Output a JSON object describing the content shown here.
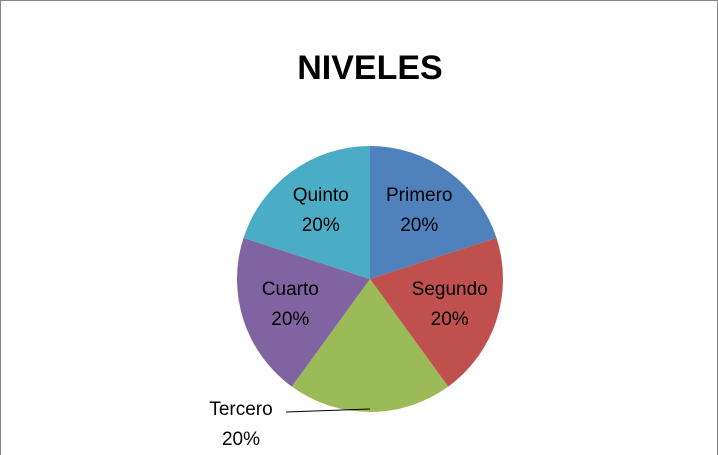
{
  "chart_data": {
    "type": "pie",
    "title": "NIVELES",
    "categories": [
      "Primero",
      "Segundo",
      "Tercero",
      "Cuarto",
      "Quinto"
    ],
    "values": [
      20,
      20,
      20,
      20,
      20
    ],
    "value_labels": [
      "20%",
      "20%",
      "20%",
      "20%",
      "20%"
    ],
    "colors": [
      "#4f81bd",
      "#c0504d",
      "#9bbb59",
      "#8064a2",
      "#4bacc6"
    ]
  }
}
